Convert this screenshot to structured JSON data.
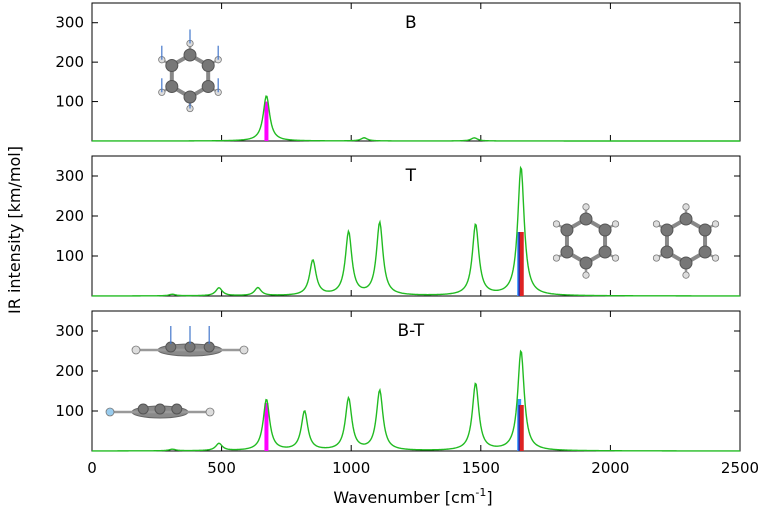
{
  "figure": {
    "ylabel": "IR intensity [km/mol]",
    "xlabel_main": "Wavenumber [cm",
    "xlabel_sup": "-1",
    "xlabel_end": "]"
  },
  "chart_data": [
    {
      "type": "line",
      "title": "B",
      "xlim": [
        0,
        2500
      ],
      "ylim": [
        0,
        350
      ],
      "x_ticks": [
        0,
        500,
        1000,
        1500,
        2000,
        2500
      ],
      "y_ticks": [
        100,
        200,
        300
      ],
      "line_color": "#22bb22",
      "peaks": [
        {
          "x": 673,
          "y": 115
        },
        {
          "x": 1050,
          "y": 8
        },
        {
          "x": 1475,
          "y": 8
        }
      ],
      "sticks": [
        {
          "x": 673,
          "y": 100,
          "color": "#ff00ff"
        }
      ],
      "inset_molecules": [
        {
          "label": "benzene-hydrogens",
          "vectors": [
            "up",
            "up",
            "up",
            "up",
            "up",
            "up"
          ]
        }
      ]
    },
    {
      "type": "line",
      "title": "T",
      "xlim": [
        0,
        2500
      ],
      "ylim": [
        0,
        350
      ],
      "x_ticks": [
        0,
        500,
        1000,
        1500,
        2000,
        2500
      ],
      "y_ticks": [
        100,
        200,
        300
      ],
      "line_color": "#22bb22",
      "peaks": [
        {
          "x": 310,
          "y": 4
        },
        {
          "x": 490,
          "y": 20
        },
        {
          "x": 640,
          "y": 20
        },
        {
          "x": 852,
          "y": 88
        },
        {
          "x": 990,
          "y": 158
        },
        {
          "x": 1110,
          "y": 182
        },
        {
          "x": 1480,
          "y": 178
        },
        {
          "x": 1655,
          "y": 322
        }
      ],
      "sticks": [
        {
          "x": 1648,
          "y": 160,
          "color": "#3399ff"
        },
        {
          "x": 1653,
          "y": 160,
          "color": "#2222aa"
        },
        {
          "x": 1658,
          "y": 160,
          "color": "#dd2222"
        }
      ],
      "inset_molecules": [
        {
          "label": "mode-a",
          "vectors": [
            "tangential"
          ]
        },
        {
          "label": "mode-b",
          "vectors": [
            "tangential"
          ]
        }
      ]
    },
    {
      "type": "line",
      "title": "B-T",
      "xlim": [
        0,
        2500
      ],
      "ylim": [
        0,
        350
      ],
      "x_ticks": [
        0,
        500,
        1000,
        1500,
        2000,
        2500
      ],
      "y_ticks": [
        100,
        200,
        300
      ],
      "line_color": "#22bb22",
      "peaks": [
        {
          "x": 310,
          "y": 4
        },
        {
          "x": 490,
          "y": 18
        },
        {
          "x": 673,
          "y": 128
        },
        {
          "x": 820,
          "y": 98
        },
        {
          "x": 990,
          "y": 130
        },
        {
          "x": 1110,
          "y": 150
        },
        {
          "x": 1480,
          "y": 168
        },
        {
          "x": 1655,
          "y": 250
        }
      ],
      "sticks": [
        {
          "x": 673,
          "y": 120,
          "color": "#ff00ff"
        },
        {
          "x": 1648,
          "y": 130,
          "color": "#3399ff"
        },
        {
          "x": 1653,
          "y": 115,
          "color": "#2222aa"
        },
        {
          "x": 1658,
          "y": 115,
          "color": "#dd2222"
        }
      ],
      "inset_molecules": [
        {
          "label": "stacked-top",
          "vectors": [
            "up"
          ]
        },
        {
          "label": "stacked-bottom",
          "vectors": [
            "none"
          ]
        }
      ]
    }
  ]
}
